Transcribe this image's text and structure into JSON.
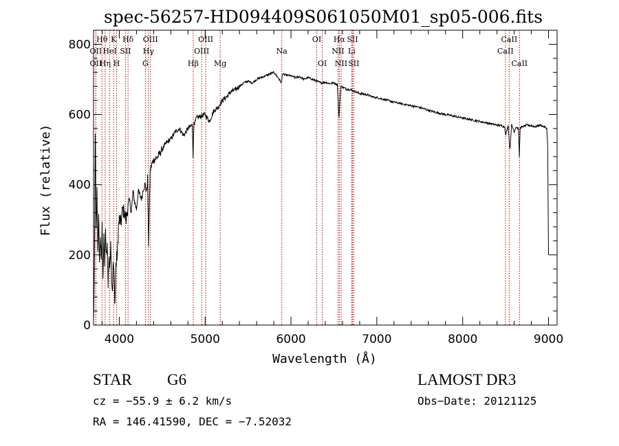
{
  "chart_data": {
    "type": "line",
    "title": "spec-56257-HD094409S061050M01_sp05-006.fits",
    "xlabel": "Wavelength (Å)",
    "ylabel": "Flux (relative)",
    "xlim": [
      3700,
      9100
    ],
    "ylim": [
      0,
      840
    ],
    "xticks": [
      4000,
      5000,
      6000,
      7000,
      8000,
      9000
    ],
    "yticks": [
      0,
      200,
      400,
      600,
      800
    ],
    "series": [
      {
        "name": "spectrum",
        "x": [
          3700,
          3710,
          3720,
          3730,
          3740,
          3750,
          3760,
          3770,
          3780,
          3790,
          3800,
          3810,
          3820,
          3830,
          3840,
          3850,
          3860,
          3870,
          3880,
          3890,
          3900,
          3910,
          3920,
          3930,
          3940,
          3950,
          3960,
          3970,
          3980,
          3990,
          4000,
          4020,
          4040,
          4060,
          4080,
          4100,
          4120,
          4140,
          4160,
          4180,
          4200,
          4220,
          4240,
          4260,
          4280,
          4300,
          4320,
          4330,
          4340,
          4360,
          4380,
          4400,
          4450,
          4500,
          4550,
          4600,
          4650,
          4700,
          4750,
          4800,
          4850,
          4860,
          4870,
          4880,
          4900,
          4950,
          5000,
          5050,
          5100,
          5150,
          5200,
          5250,
          5300,
          5350,
          5400,
          5450,
          5500,
          5550,
          5600,
          5650,
          5700,
          5750,
          5800,
          5850,
          5890,
          5900,
          5950,
          6000,
          6050,
          6100,
          6150,
          6200,
          6250,
          6300,
          6350,
          6400,
          6450,
          6500,
          6540,
          6560,
          6570,
          6580,
          6600,
          6650,
          6700,
          6750,
          6800,
          6850,
          6900,
          6950,
          7000,
          7100,
          7200,
          7300,
          7400,
          7500,
          7600,
          7700,
          7800,
          7900,
          8000,
          8100,
          8200,
          8300,
          8400,
          8450,
          8490,
          8500,
          8520,
          8530,
          8550,
          8570,
          8590,
          8600,
          8620,
          8650,
          8660,
          8670,
          8700,
          8750,
          8800,
          8850,
          8900,
          8950,
          8980,
          8990,
          9000
        ],
        "y": [
          5,
          150,
          560,
          260,
          380,
          220,
          300,
          180,
          260,
          170,
          280,
          140,
          240,
          180,
          260,
          190,
          230,
          110,
          200,
          150,
          250,
          140,
          100,
          180,
          130,
          60,
          170,
          190,
          210,
          280,
          300,
          290,
          330,
          320,
          300,
          340,
          355,
          320,
          380,
          350,
          330,
          380,
          370,
          360,
          390,
          400,
          380,
          420,
          230,
          440,
          460,
          470,
          480,
          500,
          520,
          530,
          550,
          560,
          540,
          560,
          570,
          480,
          580,
          575,
          590,
          595,
          600,
          580,
          610,
          620,
          640,
          650,
          665,
          670,
          680,
          690,
          695,
          690,
          700,
          705,
          710,
          715,
          720,
          705,
          690,
          715,
          712,
          710,
          705,
          708,
          700,
          705,
          700,
          695,
          690,
          692,
          688,
          690,
          685,
          590,
          640,
          680,
          678,
          672,
          670,
          665,
          660,
          658,
          655,
          650,
          648,
          642,
          635,
          630,
          625,
          620,
          612,
          605,
          600,
          595,
          590,
          585,
          580,
          575,
          570,
          568,
          565,
          540,
          560,
          568,
          500,
          570,
          558,
          550,
          565,
          560,
          480,
          562,
          565,
          570,
          568,
          565,
          570,
          565,
          560,
          510,
          200
        ]
      }
    ],
    "line_markers": [
      {
        "label": "Hθ",
        "wl": 3798,
        "row": 1
      },
      {
        "label": "OII",
        "wl": 3727,
        "row": 2
      },
      {
        "label": "K",
        "wl": 3934,
        "row": 1
      },
      {
        "label": "HeI",
        "wl": 3889,
        "row": 2
      },
      {
        "label": "OII",
        "wl": 3727,
        "row": 3
      },
      {
        "label": "Hη",
        "wl": 3835,
        "row": 3
      },
      {
        "label": "H",
        "wl": 3969,
        "row": 3
      },
      {
        "label": "Hδ",
        "wl": 4102,
        "row": 1
      },
      {
        "label": "SII",
        "wl": 4072,
        "row": 2
      },
      {
        "label": "OIII",
        "wl": 4363,
        "row": 1
      },
      {
        "label": "Hγ",
        "wl": 4340,
        "row": 2
      },
      {
        "label": "G",
        "wl": 4304,
        "row": 3
      },
      {
        "label": "Hβ",
        "wl": 4861,
        "row": 3
      },
      {
        "label": "OIII",
        "wl": 5007,
        "row": 1
      },
      {
        "label": "OIII",
        "wl": 4959,
        "row": 2
      },
      {
        "label": "Mg",
        "wl": 5175,
        "row": 3
      },
      {
        "label": "Na",
        "wl": 5893,
        "row": 2
      },
      {
        "label": "OI",
        "wl": 6300,
        "row": 1
      },
      {
        "label": "OI",
        "wl": 6364,
        "row": 3
      },
      {
        "label": "Hα",
        "wl": 6563,
        "row": 1
      },
      {
        "label": "SII",
        "wl": 6716,
        "row": 1
      },
      {
        "label": "NII",
        "wl": 6548,
        "row": 2
      },
      {
        "label": "Li",
        "wl": 6707,
        "row": 2
      },
      {
        "label": "NII",
        "wl": 6584,
        "row": 3
      },
      {
        "label": "SII",
        "wl": 6731,
        "row": 3
      },
      {
        "label": "CaII",
        "wl": 8542,
        "row": 1
      },
      {
        "label": "CaII",
        "wl": 8498,
        "row": 2
      },
      {
        "label": "CaII",
        "wl": 8662,
        "row": 3
      }
    ]
  },
  "info": {
    "class": "STAR",
    "subclass": "G6",
    "survey": "LAMOST DR3",
    "cz": "cz = −55.9 ± 6.2 km/s",
    "obs_date": "Obs−Date: 20121125",
    "radec": "RA = 146.41590, DEC =  −7.52032"
  }
}
